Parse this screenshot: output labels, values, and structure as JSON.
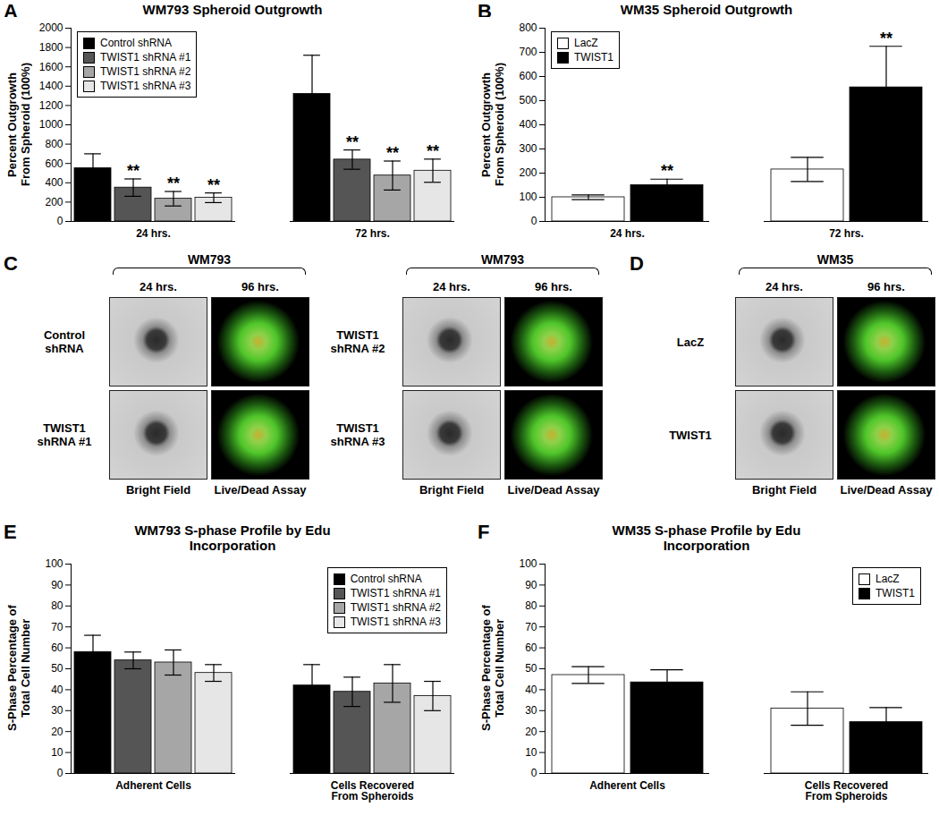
{
  "chart_data": [
    {
      "panel": "A",
      "type": "bar",
      "title": "WM793 Spheroid Outgrowth",
      "ylabel": [
        "Percent Outgrowth",
        "From Spheroid (100%)"
      ],
      "categories": [
        "24 hrs.",
        "72 hrs."
      ],
      "series": [
        {
          "name": "Control shRNA",
          "color": "#000000",
          "values": [
            550,
            1320
          ],
          "errors": [
            150,
            400
          ],
          "annotations": [
            null,
            null
          ]
        },
        {
          "name": "TWIST1 shRNA #1",
          "color": "#555555",
          "values": [
            350,
            640
          ],
          "errors": [
            90,
            100
          ],
          "annotations": [
            "**",
            "**"
          ]
        },
        {
          "name": "TWIST1 shRNA #2",
          "color": "#a6a6a6",
          "values": [
            235,
            475
          ],
          "errors": [
            75,
            150
          ],
          "annotations": [
            "**",
            "**"
          ]
        },
        {
          "name": "TWIST1 shRNA #3",
          "color": "#e6e6e6",
          "values": [
            245,
            525
          ],
          "errors": [
            50,
            120
          ],
          "annotations": [
            "**",
            "**"
          ]
        }
      ],
      "ylim": [
        0,
        2000
      ],
      "yticks": [
        0,
        200,
        400,
        600,
        800,
        1000,
        1200,
        1400,
        1600,
        1800,
        2000
      ],
      "legend": "top-left",
      "grid": false
    },
    {
      "panel": "B",
      "type": "bar",
      "title": "WM35 Spheroid Outgrowth",
      "ylabel": [
        "Percent Outgrowth",
        "From Spheroid (100%)"
      ],
      "categories": [
        "24 hrs.",
        "72 hrs."
      ],
      "series": [
        {
          "name": "LacZ",
          "color": "#ffffff",
          "values": [
            100,
            215
          ],
          "errors": [
            10,
            50
          ],
          "annotations": [
            null,
            null
          ]
        },
        {
          "name": "TWIST1",
          "color": "#000000",
          "values": [
            150,
            555
          ],
          "errors": [
            25,
            170
          ],
          "annotations": [
            "**",
            "**"
          ]
        }
      ],
      "ylim": [
        0,
        800
      ],
      "yticks": [
        0,
        100,
        200,
        300,
        400,
        500,
        600,
        700,
        800
      ],
      "legend": "top-left",
      "grid": false
    },
    {
      "panel": "E",
      "type": "bar",
      "title": "WM793 S-phase Profile by Edu Incorporation",
      "ylabel": [
        "S-Phase Percentage of",
        "Total Cell Number"
      ],
      "categories": [
        "Adherent Cells",
        "Cells Recovered From Spheroids"
      ],
      "series": [
        {
          "name": "Control shRNA",
          "color": "#000000",
          "values": [
            58,
            42
          ],
          "errors": [
            8,
            10
          ]
        },
        {
          "name": "TWIST1 shRNA #1",
          "color": "#555555",
          "values": [
            54,
            39
          ],
          "errors": [
            4,
            7
          ]
        },
        {
          "name": "TWIST1 shRNA #2",
          "color": "#a6a6a6",
          "values": [
            53,
            43
          ],
          "errors": [
            6,
            9
          ]
        },
        {
          "name": "TWIST1 shRNA #3",
          "color": "#e6e6e6",
          "values": [
            48,
            37
          ],
          "errors": [
            4,
            7
          ]
        }
      ],
      "ylim": [
        0,
        100
      ],
      "yticks": [
        0,
        10,
        20,
        30,
        40,
        50,
        60,
        70,
        80,
        90,
        100
      ],
      "legend": "top-right",
      "grid": false
    },
    {
      "panel": "F",
      "type": "bar",
      "title": "WM35 S-phase Profile by Edu Incorporation",
      "ylabel": [
        "S-Phase Percentage of",
        "Total Cell Number"
      ],
      "categories": [
        "Adherent Cells",
        "Cells Recovered From Spheroids"
      ],
      "series": [
        {
          "name": "LacZ",
          "color": "#ffffff",
          "values": [
            47,
            31
          ],
          "errors": [
            4,
            8
          ]
        },
        {
          "name": "TWIST1",
          "color": "#000000",
          "values": [
            43.5,
            24.5
          ],
          "errors": [
            6,
            7
          ]
        }
      ],
      "ylim": [
        0,
        100
      ],
      "yticks": [
        0,
        10,
        20,
        30,
        40,
        50,
        60,
        70,
        80,
        90,
        100
      ],
      "legend": "top-right",
      "grid": false
    }
  ],
  "image_panels": [
    {
      "panel": "C",
      "groups": [
        {
          "title": "WM793",
          "columns": [
            "24 hrs.",
            "96 hrs."
          ],
          "rows": [
            "Control shRNA",
            "TWIST1 shRNA #1"
          ],
          "footer": [
            "Bright Field",
            "Live/Dead Assay"
          ]
        },
        {
          "title": "WM793",
          "columns": [
            "24 hrs.",
            "96 hrs."
          ],
          "rows": [
            "TWIST1 shRNA #2",
            "TWIST1 shRNA #3"
          ],
          "footer": [
            "Bright Field",
            "Live/Dead Assay"
          ]
        }
      ]
    },
    {
      "panel": "D",
      "groups": [
        {
          "title": "WM35",
          "columns": [
            "24 hrs.",
            "96 hrs."
          ],
          "rows": [
            "LacZ",
            "TWIST1"
          ],
          "footer": [
            "Bright Field",
            "Live/Dead Assay"
          ]
        }
      ]
    }
  ]
}
